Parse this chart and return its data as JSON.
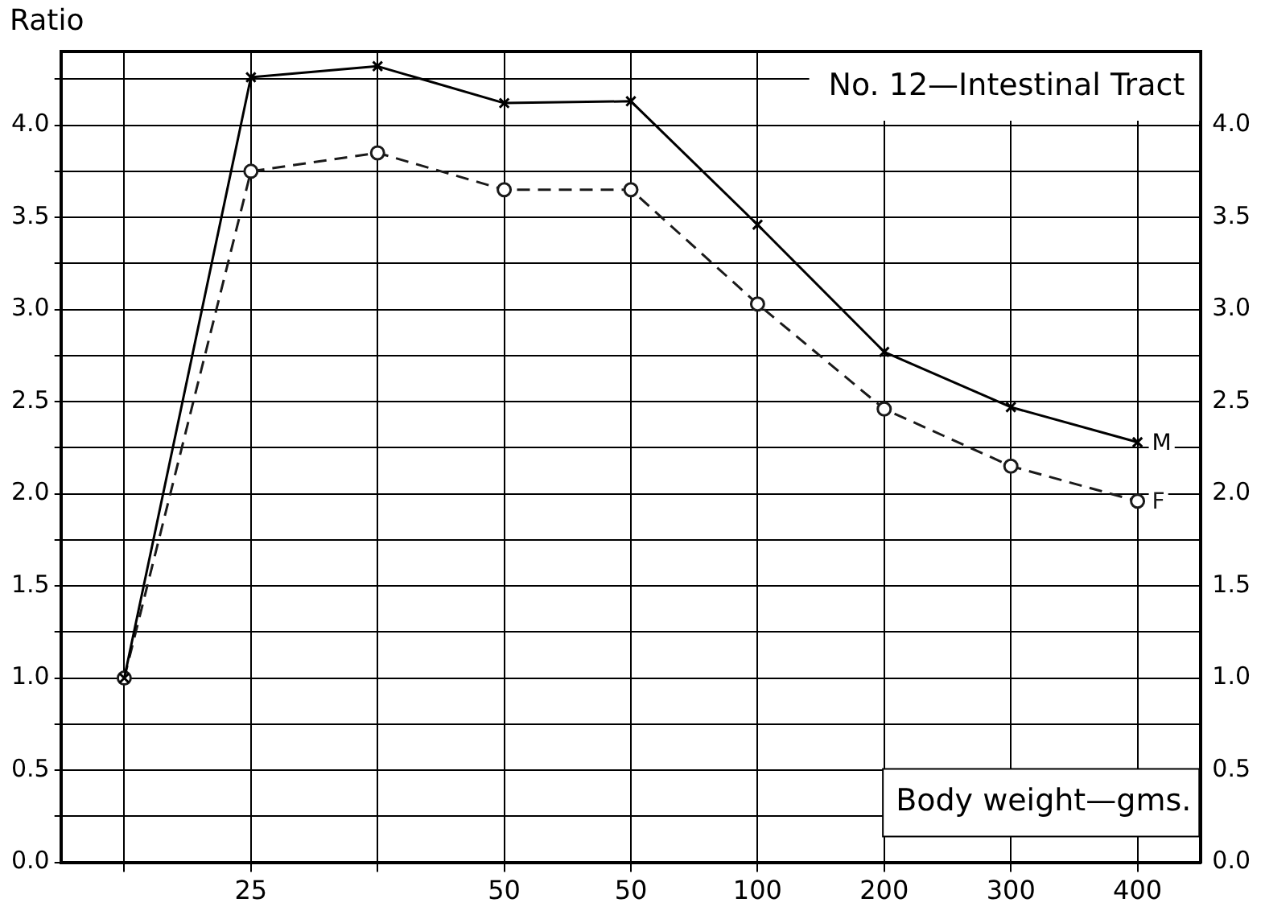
{
  "chart_data": {
    "type": "line",
    "title": "No. 12—Intestinal Tract",
    "xlabel": "Body weight—gms.",
    "ylabel": "Ratio",
    "categories": [
      null,
      "25",
      null,
      "50",
      "50",
      "100",
      "200",
      "300",
      "400"
    ],
    "series": [
      {
        "name": "M",
        "color": "#000000",
        "marker": "cross",
        "line_style": "solid",
        "values": [
          1.0,
          4.26,
          4.32,
          4.12,
          4.13,
          3.46,
          2.77,
          2.47,
          2.28
        ]
      },
      {
        "name": "F",
        "color": "#1a1a1a",
        "marker": "circle",
        "line_style": "dashed",
        "values": [
          1.0,
          3.75,
          3.85,
          3.65,
          3.65,
          3.03,
          2.46,
          2.15,
          1.96
        ]
      }
    ],
    "ylim": [
      0,
      4.4
    ],
    "yticks": [
      {
        "value": 0,
        "label": "0.0"
      },
      {
        "value": 0.25,
        "label": null
      },
      {
        "value": 0.5,
        "label": "0.5"
      },
      {
        "value": 0.75,
        "label": null
      },
      {
        "value": 1,
        "label": "1.0"
      },
      {
        "value": 1.25,
        "label": null
      },
      {
        "value": 1.5,
        "label": "1.5"
      },
      {
        "value": 1.75,
        "label": null
      },
      {
        "value": 2,
        "label": "2.0"
      },
      {
        "value": 2.25,
        "label": null
      },
      {
        "value": 2.5,
        "label": "2.5"
      },
      {
        "value": 2.75,
        "label": null
      },
      {
        "value": 3,
        "label": "3.0"
      },
      {
        "value": 3.25,
        "label": null
      },
      {
        "value": 3.5,
        "label": "3.5"
      },
      {
        "value": 3.75,
        "label": null
      },
      {
        "value": 4,
        "label": "4.0"
      },
      {
        "value": 4.25,
        "label": null
      }
    ],
    "y2lim": [
      0,
      4.4
    ],
    "y2ticks": [
      {
        "value": 0,
        "label": "0.0"
      },
      {
        "value": 0.5,
        "label": "0.5"
      },
      {
        "value": 1,
        "label": "1.0"
      },
      {
        "value": 1.5,
        "label": "1.5"
      },
      {
        "value": 2,
        "label": "2.0"
      },
      {
        "value": 2.5,
        "label": "2.5"
      },
      {
        "value": 3,
        "label": "3.0"
      },
      {
        "value": 3.5,
        "label": "3.5"
      },
      {
        "value": 4,
        "label": "4.0"
      }
    ],
    "grid": true
  }
}
